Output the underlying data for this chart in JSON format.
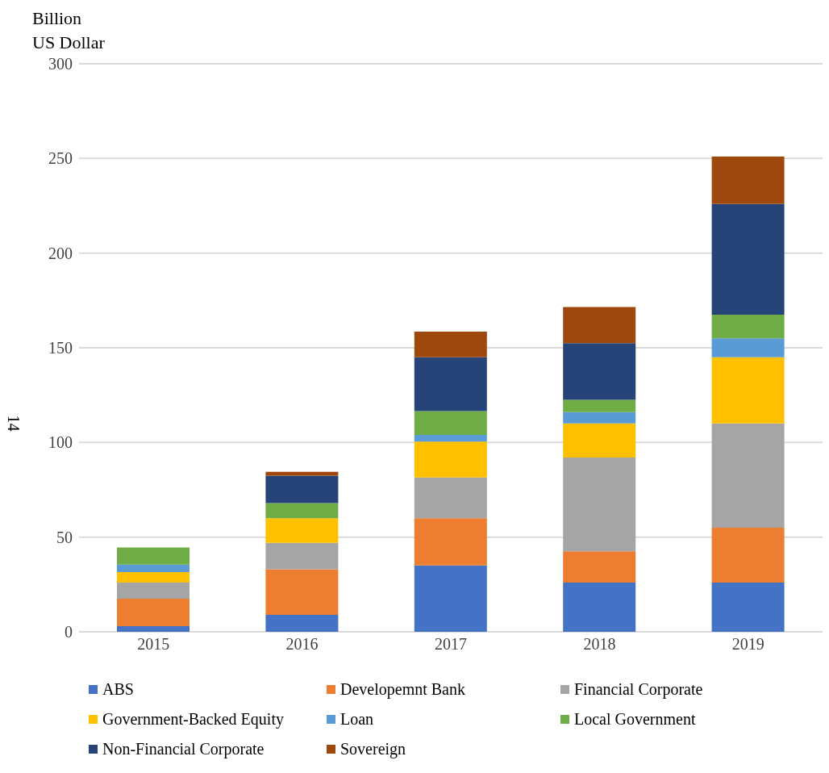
{
  "chart_data": {
    "type": "bar",
    "stacked": true,
    "ylabel": "Billion\nUS Dollar",
    "categories": [
      "2015",
      "2016",
      "2017",
      "2018",
      "2019"
    ],
    "series": [
      {
        "name": "ABS",
        "color": "#4472c4",
        "values": [
          3,
          9,
          35,
          26,
          26
        ]
      },
      {
        "name": "Developemnt Bank",
        "color": "#ed7d31",
        "values": [
          14.5,
          24,
          25,
          16.5,
          29
        ]
      },
      {
        "name": "Financial Corporate",
        "color": "#a5a5a5",
        "values": [
          8.5,
          14,
          21.5,
          49.5,
          55
        ]
      },
      {
        "name": "Government-Backed Equity",
        "color": "#ffc000",
        "values": [
          5.5,
          13,
          19,
          18,
          35
        ]
      },
      {
        "name": "Loan",
        "color": "#5b9bd5",
        "values": [
          4,
          0,
          3.5,
          6,
          10
        ]
      },
      {
        "name": "Local Government",
        "color": "#70ad47",
        "values": [
          9,
          8,
          12.5,
          6.5,
          12.5
        ]
      },
      {
        "name": "Non-Financial Corporate",
        "color": "#264478",
        "values": [
          0,
          14.5,
          28.5,
          30,
          58.5
        ]
      },
      {
        "name": "Sovereign",
        "color": "#9e480e",
        "values": [
          0,
          2,
          13.5,
          19,
          25
        ]
      }
    ],
    "ylim": [
      0,
      300
    ],
    "yticks": [
      0,
      50,
      100,
      150,
      200,
      250,
      300
    ],
    "grid": "y",
    "legend": "bottom",
    "annotations": [
      "14"
    ]
  }
}
